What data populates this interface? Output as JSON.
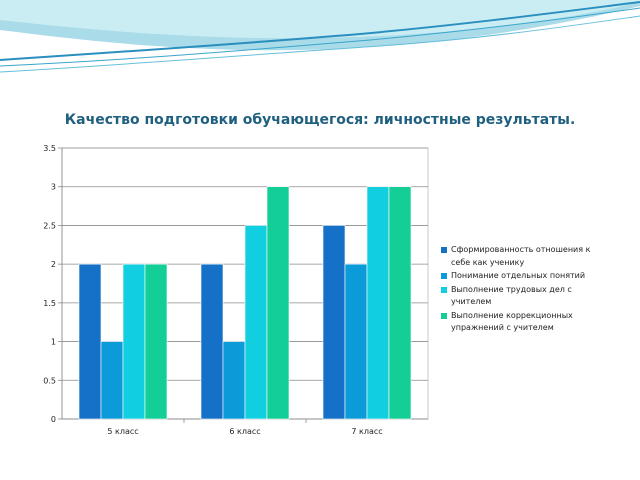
{
  "slide": {
    "title": "Качество подготовки обучающегося: личностные результаты",
    "title_suffix": "."
  },
  "colors": {
    "series": [
      "#1570c8",
      "#0a9bd8",
      "#12cfe0",
      "#13cf97"
    ],
    "axis_text": "#222222",
    "gridline": "#8c8c8c",
    "title": "#1f5f80"
  },
  "chart_data": {
    "type": "bar",
    "title": "",
    "xlabel": "",
    "ylabel": "",
    "categories": [
      "5 класс",
      "6 класс",
      "7 класс"
    ],
    "ylim": [
      0,
      3.5
    ],
    "yticks": [
      "0",
      "0.5",
      "1",
      "1.5",
      "2",
      "2.5",
      "3",
      "3.5"
    ],
    "grid": true,
    "legend_position": "right",
    "series": [
      {
        "name": "Сформированность отношения к себе как ученику",
        "values": [
          2,
          2,
          2.5
        ]
      },
      {
        "name": "Понимание отдельных понятий",
        "values": [
          1,
          1,
          2
        ]
      },
      {
        "name": "Выполнение трудовых дел с учителем",
        "values": [
          2,
          2.5,
          3
        ]
      },
      {
        "name": "Выполнение коррекционных упражнений  с учителем",
        "values": [
          2,
          3,
          3
        ]
      }
    ]
  }
}
